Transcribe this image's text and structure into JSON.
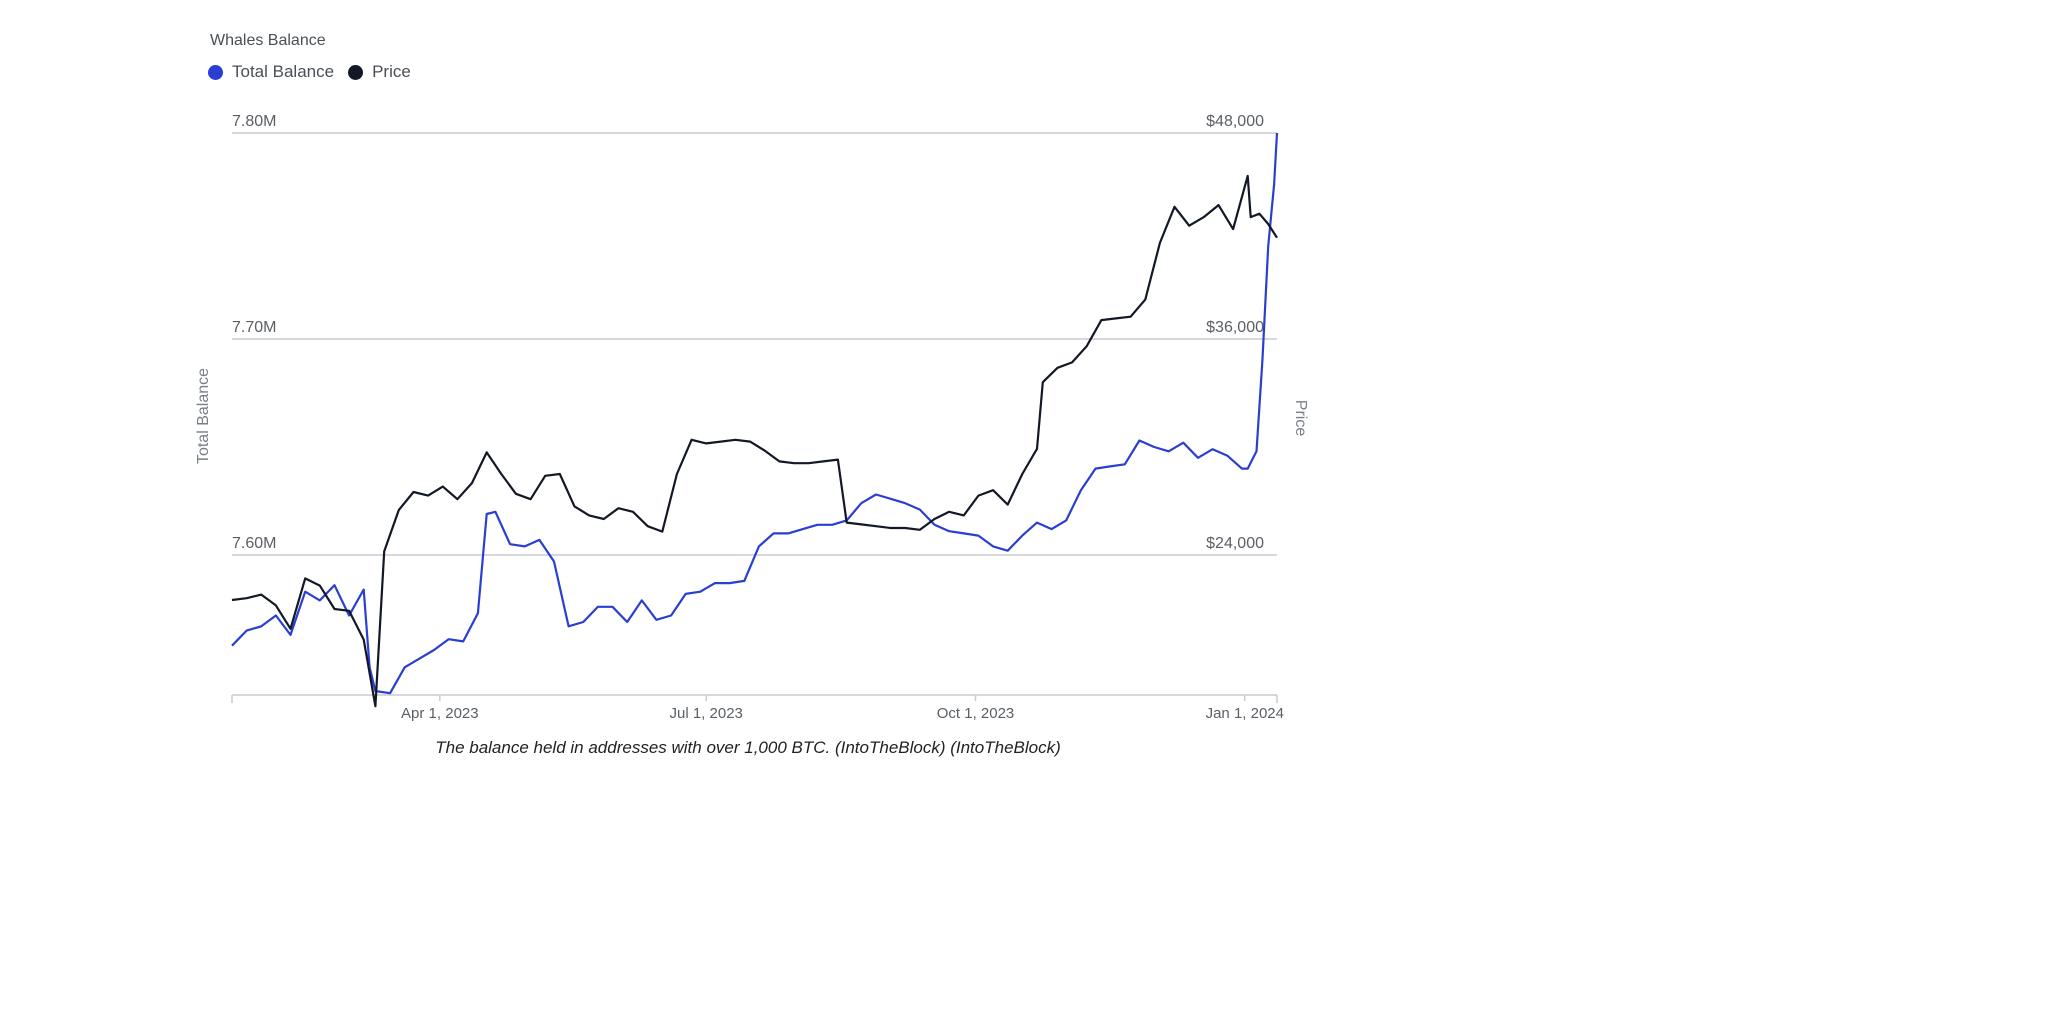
{
  "chart_data": {
    "type": "line",
    "title": "Whales Balance",
    "y_left_label": "Total Balance",
    "y_right_label": "Price",
    "y_left_ticks": [
      "7.80M",
      "7.70M",
      "7.60M"
    ],
    "y_right_ticks": [
      "$48,000",
      "$36,000",
      "$24,000"
    ],
    "y_left_range": [
      7535000,
      7800000
    ],
    "y_right_range": [
      15500000,
      48000
    ],
    "x_ticks": [
      {
        "label": "Apr 1, 2023",
        "date": "2023-04-01"
      },
      {
        "label": "Jul 1, 2023",
        "date": "2023-07-01"
      },
      {
        "label": "Oct 1, 2023",
        "date": "2023-10-01"
      },
      {
        "label": "Jan 1, 2024",
        "date": "2024-01-01"
      }
    ],
    "x_range": [
      "2023-01-20",
      "2024-01-12"
    ],
    "grid": "horizontal",
    "legend_position": "top-left",
    "series": [
      {
        "name": "Total Balance",
        "axis": "left",
        "color": "#2a3fd1",
        "points": [
          [
            "2023-01-20",
            7.558
          ],
          [
            "2023-01-25",
            7.565
          ],
          [
            "2023-01-30",
            7.567
          ],
          [
            "2023-02-04",
            7.572
          ],
          [
            "2023-02-09",
            7.563
          ],
          [
            "2023-02-14",
            7.583
          ],
          [
            "2023-02-19",
            7.579
          ],
          [
            "2023-02-24",
            7.586
          ],
          [
            "2023-03-01",
            7.572
          ],
          [
            "2023-03-06",
            7.584
          ],
          [
            "2023-03-08",
            7.548
          ],
          [
            "2023-03-10",
            7.537
          ],
          [
            "2023-03-15",
            7.536
          ],
          [
            "2023-03-20",
            7.548
          ],
          [
            "2023-03-25",
            7.552
          ],
          [
            "2023-03-30",
            7.556
          ],
          [
            "2023-04-04",
            7.561
          ],
          [
            "2023-04-09",
            7.56
          ],
          [
            "2023-04-14",
            7.573
          ],
          [
            "2023-04-17",
            7.619
          ],
          [
            "2023-04-20",
            7.62
          ],
          [
            "2023-04-25",
            7.605
          ],
          [
            "2023-04-30",
            7.604
          ],
          [
            "2023-05-05",
            7.607
          ],
          [
            "2023-05-10",
            7.597
          ],
          [
            "2023-05-15",
            7.567
          ],
          [
            "2023-05-20",
            7.569
          ],
          [
            "2023-05-25",
            7.576
          ],
          [
            "2023-05-30",
            7.576
          ],
          [
            "2023-06-04",
            7.569
          ],
          [
            "2023-06-09",
            7.579
          ],
          [
            "2023-06-14",
            7.57
          ],
          [
            "2023-06-19",
            7.572
          ],
          [
            "2023-06-24",
            7.582
          ],
          [
            "2023-06-29",
            7.583
          ],
          [
            "2023-07-04",
            7.587
          ],
          [
            "2023-07-09",
            7.587
          ],
          [
            "2023-07-14",
            7.588
          ],
          [
            "2023-07-19",
            7.604
          ],
          [
            "2023-07-24",
            7.61
          ],
          [
            "2023-07-29",
            7.61
          ],
          [
            "2023-08-03",
            7.612
          ],
          [
            "2023-08-08",
            7.614
          ],
          [
            "2023-08-13",
            7.614
          ],
          [
            "2023-08-18",
            7.616
          ],
          [
            "2023-08-23",
            7.624
          ],
          [
            "2023-08-28",
            7.628
          ],
          [
            "2023-09-02",
            7.626
          ],
          [
            "2023-09-07",
            7.624
          ],
          [
            "2023-09-12",
            7.621
          ],
          [
            "2023-09-17",
            7.614
          ],
          [
            "2023-09-22",
            7.611
          ],
          [
            "2023-09-27",
            7.61
          ],
          [
            "2023-10-02",
            7.609
          ],
          [
            "2023-10-07",
            7.604
          ],
          [
            "2023-10-12",
            7.602
          ],
          [
            "2023-10-17",
            7.609
          ],
          [
            "2023-10-22",
            7.615
          ],
          [
            "2023-10-27",
            7.612
          ],
          [
            "2023-11-01",
            7.616
          ],
          [
            "2023-11-06",
            7.63
          ],
          [
            "2023-11-11",
            7.64
          ],
          [
            "2023-11-16",
            7.641
          ],
          [
            "2023-11-21",
            7.642
          ],
          [
            "2023-11-26",
            7.653
          ],
          [
            "2023-12-01",
            7.65
          ],
          [
            "2023-12-06",
            7.648
          ],
          [
            "2023-12-11",
            7.652
          ],
          [
            "2023-12-16",
            7.645
          ],
          [
            "2023-12-21",
            7.649
          ],
          [
            "2023-12-26",
            7.646
          ],
          [
            "2023-12-31",
            7.64
          ],
          [
            "2024-01-02",
            7.64
          ],
          [
            "2024-01-05",
            7.648
          ],
          [
            "2024-01-07",
            7.69
          ],
          [
            "2024-01-09",
            7.745
          ],
          [
            "2024-01-11",
            7.775
          ],
          [
            "2024-01-12",
            7.8
          ]
        ]
      },
      {
        "name": "Price",
        "axis": "right",
        "color": "#121826",
        "points": [
          [
            "2023-01-20",
            21500
          ],
          [
            "2023-01-25",
            21600
          ],
          [
            "2023-01-30",
            21800
          ],
          [
            "2023-02-04",
            21200
          ],
          [
            "2023-02-09",
            19900
          ],
          [
            "2023-02-14",
            22700
          ],
          [
            "2023-02-19",
            22300
          ],
          [
            "2023-02-24",
            21000
          ],
          [
            "2023-03-01",
            20900
          ],
          [
            "2023-03-06",
            19300
          ],
          [
            "2023-03-10",
            15600
          ],
          [
            "2023-03-13",
            24200
          ],
          [
            "2023-03-18",
            26500
          ],
          [
            "2023-03-23",
            27500
          ],
          [
            "2023-03-28",
            27300
          ],
          [
            "2023-04-02",
            27800
          ],
          [
            "2023-04-07",
            27100
          ],
          [
            "2023-04-12",
            28000
          ],
          [
            "2023-04-17",
            29700
          ],
          [
            "2023-04-22",
            28500
          ],
          [
            "2023-04-27",
            27400
          ],
          [
            "2023-05-02",
            27100
          ],
          [
            "2023-05-07",
            28400
          ],
          [
            "2023-05-12",
            28500
          ],
          [
            "2023-05-17",
            26700
          ],
          [
            "2023-05-22",
            26200
          ],
          [
            "2023-05-27",
            26000
          ],
          [
            "2023-06-01",
            26600
          ],
          [
            "2023-06-06",
            26400
          ],
          [
            "2023-06-11",
            25600
          ],
          [
            "2023-06-16",
            25300
          ],
          [
            "2023-06-21",
            28500
          ],
          [
            "2023-06-26",
            30400
          ],
          [
            "2023-07-01",
            30200
          ],
          [
            "2023-07-06",
            30300
          ],
          [
            "2023-07-11",
            30400
          ],
          [
            "2023-07-16",
            30300
          ],
          [
            "2023-07-21",
            29800
          ],
          [
            "2023-07-26",
            29200
          ],
          [
            "2023-07-31",
            29100
          ],
          [
            "2023-08-05",
            29100
          ],
          [
            "2023-08-10",
            29200
          ],
          [
            "2023-08-15",
            29300
          ],
          [
            "2023-08-18",
            25800
          ],
          [
            "2023-08-23",
            25700
          ],
          [
            "2023-08-28",
            25600
          ],
          [
            "2023-09-02",
            25500
          ],
          [
            "2023-09-07",
            25500
          ],
          [
            "2023-09-12",
            25400
          ],
          [
            "2023-09-17",
            26000
          ],
          [
            "2023-09-22",
            26400
          ],
          [
            "2023-09-27",
            26200
          ],
          [
            "2023-10-02",
            27300
          ],
          [
            "2023-10-07",
            27600
          ],
          [
            "2023-10-12",
            26800
          ],
          [
            "2023-10-17",
            28500
          ],
          [
            "2023-10-22",
            29900
          ],
          [
            "2023-10-24",
            33600
          ],
          [
            "2023-10-29",
            34400
          ],
          [
            "2023-11-03",
            34700
          ],
          [
            "2023-11-08",
            35600
          ],
          [
            "2023-11-13",
            37100
          ],
          [
            "2023-11-18",
            37200
          ],
          [
            "2023-11-23",
            37300
          ],
          [
            "2023-11-28",
            38300
          ],
          [
            "2023-12-03",
            41600
          ],
          [
            "2023-12-08",
            43700
          ],
          [
            "2023-12-13",
            42600
          ],
          [
            "2023-12-18",
            43100
          ],
          [
            "2023-12-23",
            43800
          ],
          [
            "2023-12-28",
            42400
          ],
          [
            "2024-01-02",
            45500
          ],
          [
            "2024-01-03",
            43100
          ],
          [
            "2024-01-06",
            43300
          ],
          [
            "2024-01-09",
            42700
          ],
          [
            "2024-01-12",
            41900
          ]
        ]
      }
    ]
  },
  "caption": "The balance held in addresses with over 1,000 BTC. (IntoTheBlock) (IntoTheBlock)"
}
